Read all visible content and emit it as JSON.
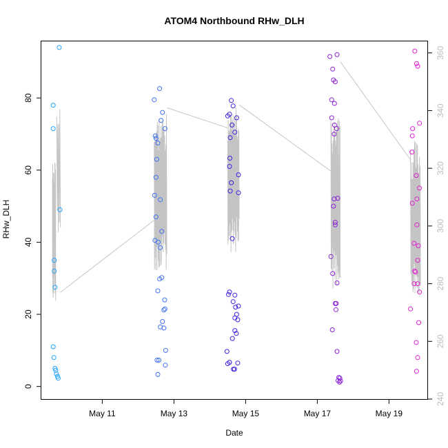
{
  "chart_data": {
    "type": "scatter",
    "title": "ATOM4 Northbound RHw_DLH",
    "xlabel": "Date",
    "ylabel": "RHw_DLH",
    "x_unit": "days",
    "x_ticks": [
      {
        "value": 11,
        "label": "May 11"
      },
      {
        "value": 13,
        "label": "May 13"
      },
      {
        "value": 15,
        "label": "May 15"
      },
      {
        "value": 17,
        "label": "May 17"
      },
      {
        "value": 19,
        "label": "May 19"
      }
    ],
    "xlim": [
      9.3,
      20.07
    ],
    "ylim": [
      -3.5,
      95.7
    ],
    "y_ticks": [
      0,
      20,
      40,
      60,
      80
    ],
    "y2lim": [
      240,
      364
    ],
    "y2_ticks": [
      240,
      260,
      280,
      300,
      320,
      340,
      360
    ],
    "grid": false,
    "legend": "none",
    "point_series": [
      {
        "color": "#1fa3ff",
        "points": [
          [
            9.63,
            78.0
          ],
          [
            9.63,
            71.5
          ],
          [
            9.66,
            35.0
          ],
          [
            9.66,
            32.0
          ],
          [
            9.68,
            27.5
          ],
          [
            9.63,
            11.0
          ],
          [
            9.65,
            8.0
          ],
          [
            9.68,
            5.0
          ],
          [
            9.7,
            4.5
          ],
          [
            9.72,
            3.5
          ],
          [
            9.75,
            2.8
          ],
          [
            9.77,
            2.3
          ],
          [
            9.8,
            94.0
          ],
          [
            9.82,
            49.0
          ]
        ]
      },
      {
        "color": "#3f6ff5",
        "points": [
          [
            12.45,
            79.5
          ],
          [
            12.48,
            69.5
          ],
          [
            12.5,
            68.8
          ],
          [
            12.55,
            67.5
          ],
          [
            12.52,
            63.0
          ],
          [
            12.5,
            58.0
          ],
          [
            12.46,
            53.0
          ],
          [
            12.62,
            51.8
          ],
          [
            12.5,
            47.0
          ],
          [
            12.47,
            40.5
          ],
          [
            12.56,
            40.0
          ],
          [
            12.62,
            38.5
          ],
          [
            12.66,
            43.0
          ],
          [
            12.6,
            82.6
          ],
          [
            12.64,
            73.8
          ],
          [
            12.68,
            76.0
          ],
          [
            12.75,
            71.5
          ],
          [
            12.55,
            26.5
          ],
          [
            12.6,
            29.8
          ],
          [
            12.66,
            30.2
          ],
          [
            12.74,
            24.0
          ],
          [
            12.72,
            21.2
          ],
          [
            12.75,
            21.5
          ],
          [
            12.68,
            18.0
          ],
          [
            12.62,
            16.5
          ],
          [
            12.72,
            16.2
          ],
          [
            12.77,
            10.0
          ],
          [
            12.53,
            7.3
          ],
          [
            12.58,
            7.3
          ],
          [
            12.55,
            3.3
          ],
          [
            12.76,
            5.9
          ]
        ]
      },
      {
        "color": "#3c1fe0",
        "points": [
          [
            14.5,
            75.0
          ],
          [
            14.55,
            75.5
          ],
          [
            14.6,
            79.3
          ],
          [
            14.65,
            77.8
          ],
          [
            14.62,
            72.5
          ],
          [
            14.57,
            69.0
          ],
          [
            14.7,
            70.5
          ],
          [
            14.75,
            74.5
          ],
          [
            14.56,
            63.3
          ],
          [
            14.55,
            61.0
          ],
          [
            14.6,
            56.5
          ],
          [
            14.57,
            54.2
          ],
          [
            14.8,
            58.7
          ],
          [
            14.8,
            53.7
          ],
          [
            14.63,
            41.0
          ],
          [
            14.52,
            25.5
          ],
          [
            14.55,
            26.2
          ],
          [
            14.7,
            25.3
          ],
          [
            14.65,
            23.5
          ],
          [
            14.72,
            22.0
          ],
          [
            14.8,
            22.3
          ],
          [
            14.75,
            20.0
          ],
          [
            14.7,
            19.0
          ],
          [
            14.78,
            18.5
          ],
          [
            14.7,
            15.5
          ],
          [
            14.74,
            14.7
          ],
          [
            14.63,
            13.3
          ],
          [
            14.48,
            9.7
          ],
          [
            14.5,
            6.3
          ],
          [
            14.55,
            6.7
          ],
          [
            14.66,
            4.8
          ],
          [
            14.69,
            4.8
          ],
          [
            14.78,
            6.5
          ]
        ]
      },
      {
        "color": "#8a1fd6",
        "points": [
          [
            17.35,
            91.5
          ],
          [
            17.55,
            92.0
          ],
          [
            17.43,
            88.0
          ],
          [
            17.4,
            79.5
          ],
          [
            17.48,
            78.5
          ],
          [
            17.45,
            85.0
          ],
          [
            17.5,
            84.5
          ],
          [
            17.4,
            74.5
          ],
          [
            17.48,
            72.5
          ],
          [
            17.54,
            71.5
          ],
          [
            17.47,
            70.0
          ],
          [
            17.47,
            52.0
          ],
          [
            17.57,
            52.2
          ],
          [
            17.45,
            50.0
          ],
          [
            17.5,
            45.5
          ],
          [
            17.5,
            44.8
          ],
          [
            17.38,
            36.0
          ],
          [
            17.43,
            31.3
          ],
          [
            17.55,
            28.7
          ],
          [
            17.5,
            23.0
          ],
          [
            17.53,
            23.0
          ],
          [
            17.52,
            21.3
          ],
          [
            17.42,
            15.7
          ],
          [
            17.55,
            9.7
          ],
          [
            17.6,
            2.5
          ],
          [
            17.63,
            2.3
          ],
          [
            17.58,
            1.6
          ],
          [
            17.65,
            1.5
          ],
          [
            17.62,
            1.2
          ]
        ]
      },
      {
        "color": "#e01fd0",
        "points": [
          [
            19.72,
            93.0
          ],
          [
            19.77,
            89.5
          ],
          [
            19.8,
            88.8
          ],
          [
            19.66,
            71.5
          ],
          [
            19.85,
            73.0
          ],
          [
            19.65,
            69.5
          ],
          [
            19.64,
            65.0
          ],
          [
            19.76,
            58.5
          ],
          [
            19.85,
            55.0
          ],
          [
            19.78,
            52.0
          ],
          [
            19.65,
            50.8
          ],
          [
            19.78,
            44.8
          ],
          [
            19.7,
            39.7
          ],
          [
            19.82,
            39.0
          ],
          [
            19.8,
            35.0
          ],
          [
            19.72,
            32.0
          ],
          [
            19.74,
            31.7
          ],
          [
            19.7,
            28.5
          ],
          [
            19.8,
            28.5
          ],
          [
            19.85,
            26.2
          ],
          [
            19.6,
            21.5
          ],
          [
            19.83,
            17.7
          ],
          [
            19.76,
            12.2
          ],
          [
            19.8,
            8.0
          ],
          [
            19.77,
            4.2
          ]
        ]
      }
    ],
    "line_series": {
      "color": "#c4c4c4",
      "axis": "y2",
      "segments": [
        {
          "x0": 9.61,
          "x1": 9.7,
          "n": 26,
          "base": 298,
          "amp": 24,
          "seed": 1
        },
        {
          "x0": 9.73,
          "x1": 9.83,
          "n": 8,
          "base": 320,
          "amp": 26,
          "seed": 2
        },
        {
          "x0": 12.45,
          "x1": 12.8,
          "n": 42,
          "base": 312,
          "amp": 28,
          "seed": 3
        },
        {
          "x0": 14.5,
          "x1": 14.82,
          "n": 40,
          "base": 316,
          "amp": 26,
          "seed": 4
        },
        {
          "x0": 17.38,
          "x1": 17.64,
          "n": 34,
          "base": 308,
          "amp": 30,
          "seed": 5
        },
        {
          "x0": 19.6,
          "x1": 19.88,
          "n": 30,
          "base": 302,
          "amp": 28,
          "seed": 6
        }
      ],
      "bridges": [
        [
          [
            9.83,
            277
          ],
          [
            12.45,
            302
          ]
        ],
        [
          [
            12.8,
            341
          ],
          [
            14.5,
            334
          ]
        ],
        [
          [
            14.82,
            342
          ],
          [
            17.38,
            319
          ]
        ],
        [
          [
            17.64,
            357
          ],
          [
            19.6,
            323
          ]
        ]
      ]
    }
  }
}
